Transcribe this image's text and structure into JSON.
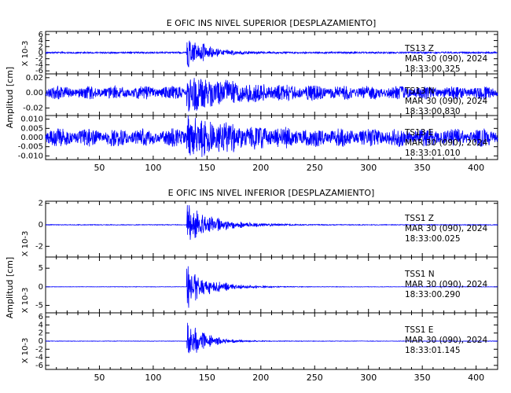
{
  "chart_data": [
    {
      "type": "line",
      "title": "E OFIC INS NIVEL SUPERIOR [DESPLAZAMIENTO]",
      "ylabel": "Amplitud [cm]",
      "xlim": [
        0,
        420
      ],
      "xticks": [
        50,
        100,
        150,
        200,
        250,
        300,
        350,
        400
      ],
      "xtick_labels": [
        "50",
        "100",
        "150",
        "200",
        "250",
        "300",
        "350",
        "400"
      ],
      "trace_color": "#0000ff",
      "series": [
        {
          "name": "TS13 Z",
          "station": "TS13",
          "component": "Z",
          "date": "MAR 30 (090), 2024",
          "time": "18:33:00.325",
          "scale_label": "X 10-3",
          "ylim": [
            -7,
            7
          ],
          "yticks": [
            -6,
            -4,
            -2,
            0,
            2,
            4,
            6
          ],
          "ytick_labels": [
            "-6",
            "-4",
            "-2",
            "0",
            "2",
            "4",
            "6"
          ],
          "pre_event_amplitude": 0.25,
          "peak_amplitude": 6.5,
          "onset_time": 131,
          "decay_seconds": 18,
          "beats": false
        },
        {
          "name": "TS13 N",
          "station": "TS13",
          "component": "N",
          "date": "MAR 30 (090), 2024",
          "time": "18:33:00.830",
          "scale_label": "",
          "ylim": [
            -0.03,
            0.025
          ],
          "yticks": [
            -0.02,
            0,
            0.02
          ],
          "ytick_labels": [
            "-0.02",
            "0.00",
            "0.02"
          ],
          "pre_event_amplitude": 0.009,
          "peak_amplitude": 0.022,
          "onset_time": 131,
          "decay_seconds": 45,
          "beats": true
        },
        {
          "name": "TS13 E",
          "station": "TS13",
          "component": "E",
          "date": "MAR 30 (090), 2024",
          "time": "18:33:01.010",
          "scale_label": "",
          "ylim": [
            -0.012,
            0.012
          ],
          "yticks": [
            -0.01,
            -0.005,
            0,
            0.005,
            0.01
          ],
          "ytick_labels": [
            "-0.010",
            "-0.005",
            "0.000",
            "0.005",
            "0.010"
          ],
          "pre_event_amplitude": 0.005,
          "peak_amplitude": 0.01,
          "onset_time": 131,
          "decay_seconds": 40,
          "beats": true
        }
      ]
    },
    {
      "type": "line",
      "title": "E OFIC INS NIVEL INFERIOR [DESPLAZAMIENTO]",
      "ylabel": "Amplitud [cm]",
      "xlim": [
        0,
        420
      ],
      "xticks": [
        50,
        100,
        150,
        200,
        250,
        300,
        350,
        400
      ],
      "xtick_labels": [
        "50",
        "100",
        "150",
        "200",
        "250",
        "300",
        "350",
        "400"
      ],
      "trace_color": "#0000ff",
      "series": [
        {
          "name": "TSS1 Z",
          "station": "TSS1",
          "component": "Z",
          "date": "MAR 30 (090), 2024",
          "time": "18:33:00.025",
          "scale_label": "X 10-3",
          "ylim": [
            -3,
            2.2
          ],
          "yticks": [
            -2,
            0,
            2
          ],
          "ytick_labels": [
            "-2",
            "0",
            "2"
          ],
          "pre_event_amplitude": 0.03,
          "peak_amplitude": 2.1,
          "onset_time": 131,
          "decay_seconds": 25,
          "beats": false
        },
        {
          "name": "TSS1 N",
          "station": "TSS1",
          "component": "N",
          "date": "MAR 30 (090), 2024",
          "time": "18:33:00.290",
          "scale_label": "X 10-3",
          "ylim": [
            -7,
            8
          ],
          "yticks": [
            -5,
            0,
            5
          ],
          "ytick_labels": [
            "-5",
            "0",
            "5"
          ],
          "pre_event_amplitude": 0.05,
          "peak_amplitude": 7,
          "onset_time": 131,
          "decay_seconds": 20,
          "beats": false
        },
        {
          "name": "TSS1 E",
          "station": "TSS1",
          "component": "E",
          "date": "MAR 30 (090), 2024",
          "time": "18:33:01.145",
          "scale_label": "X 10-3",
          "ylim": [
            -7,
            7
          ],
          "yticks": [
            -6,
            -4,
            -2,
            0,
            2,
            4,
            6
          ],
          "ytick_labels": [
            "-6",
            "-4",
            "-2",
            "0",
            "2",
            "4",
            "6"
          ],
          "pre_event_amplitude": 0.05,
          "peak_amplitude": 6,
          "onset_time": 131,
          "decay_seconds": 16,
          "beats": false
        }
      ]
    }
  ]
}
